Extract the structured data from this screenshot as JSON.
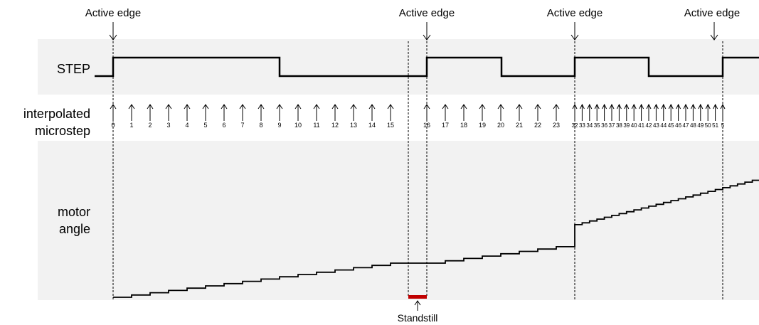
{
  "labels": {
    "step": "STEP",
    "interpolated_line1": "interpolated",
    "interpolated_line2": "microstep",
    "motor_line1": "motor",
    "motor_line2": "angle",
    "active_edge": "Active edge",
    "standstill": "Standstill"
  },
  "active_edge_labels": [
    "Active edge",
    "Active edge",
    "Active edge",
    "Active edge"
  ],
  "microstep_labels": [
    "0",
    "1",
    "2",
    "3",
    "4",
    "5",
    "6",
    "7",
    "8",
    "9",
    "10",
    "11",
    "12",
    "13",
    "14",
    "15",
    "16",
    "17",
    "18",
    "19",
    "20",
    "21",
    "22",
    "23",
    "32",
    "33",
    "34",
    "35",
    "36",
    "37",
    "38",
    "39",
    "40",
    "41",
    "42",
    "43",
    "44",
    "45",
    "46",
    "47",
    "48",
    "49",
    "50",
    "51",
    "5"
  ],
  "colors": {
    "band": "#f2f2f2",
    "line": "#000000",
    "standstill": "#c00000"
  }
}
